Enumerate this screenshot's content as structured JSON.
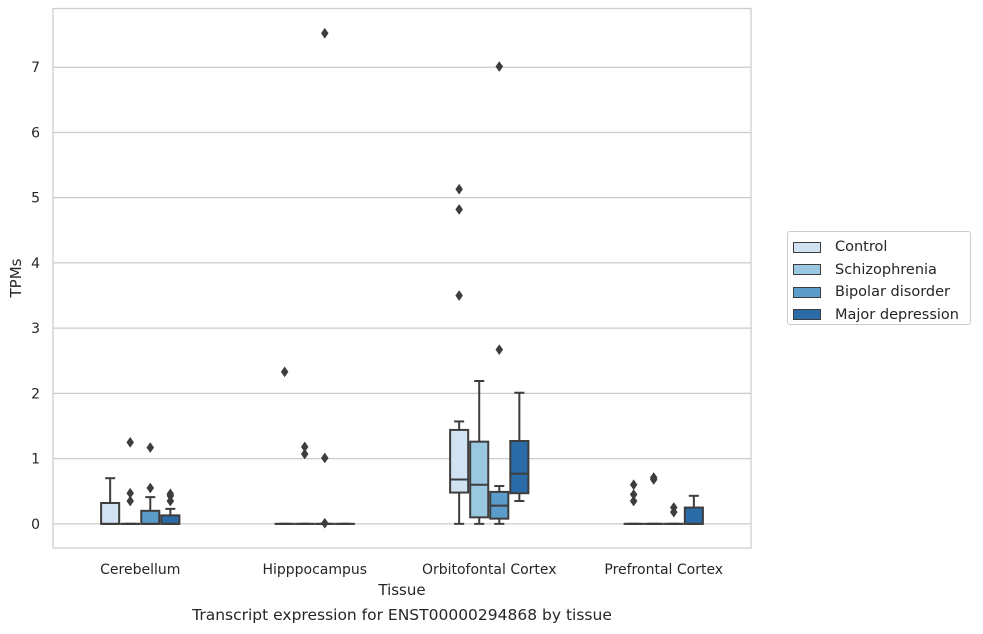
{
  "chart_data": {
    "type": "box",
    "title": "Transcript expression for ENST00000294868 by tissue",
    "xlabel": "Tissue",
    "ylabel": "TPMs",
    "categories": [
      "Cerebellum",
      "Hipppocampus",
      "Orbitofontal Cortex",
      "Prefrontal Cortex"
    ],
    "ylim": [
      -0.37,
      7.9
    ],
    "yticks": [
      0,
      1,
      2,
      3,
      4,
      5,
      6,
      7
    ],
    "grid": "horizontal",
    "legend_position": "right",
    "series": [
      {
        "name": "Control",
        "color": "#d1e2f2",
        "boxes": [
          {
            "min": 0,
            "q1": 0,
            "median": 0,
            "q3": 0.32,
            "max": 0.7,
            "outliers": []
          },
          {
            "min": 0,
            "q1": 0,
            "median": 0,
            "q3": 0,
            "max": 0,
            "outliers": [
              2.33
            ]
          },
          {
            "min": 0,
            "q1": 0.48,
            "median": 0.68,
            "q3": 1.44,
            "max": 1.57,
            "outliers": [
              3.5,
              4.82,
              5.13
            ]
          },
          {
            "min": 0,
            "q1": 0,
            "median": 0,
            "q3": 0,
            "max": 0,
            "outliers": [
              0.35,
              0.45,
              0.6
            ]
          }
        ]
      },
      {
        "name": "Schizophrenia",
        "color": "#9ac8e0",
        "boxes": [
          {
            "min": 0,
            "q1": 0,
            "median": 0,
            "q3": 0,
            "max": 0,
            "outliers": [
              0.35,
              0.47,
              1.25
            ]
          },
          {
            "min": 0,
            "q1": 0,
            "median": 0,
            "q3": 0,
            "max": 0,
            "outliers": [
              1.07,
              1.18
            ]
          },
          {
            "min": 0,
            "q1": 0.1,
            "median": 0.6,
            "q3": 1.26,
            "max": 2.19,
            "outliers": []
          },
          {
            "min": 0,
            "q1": 0,
            "median": 0,
            "q3": 0,
            "max": 0,
            "outliers": [
              0.68,
              0.71
            ]
          }
        ]
      },
      {
        "name": "Bipolar disorder",
        "color": "#5b9ccb",
        "boxes": [
          {
            "min": 0,
            "q1": 0,
            "median": 0,
            "q3": 0.2,
            "max": 0.41,
            "outliers": [
              0.55,
              1.17
            ]
          },
          {
            "min": 0,
            "q1": 0,
            "median": 0,
            "q3": 0,
            "max": 0,
            "outliers": [
              0.01,
              1.01,
              7.52
            ]
          },
          {
            "min": 0,
            "q1": 0.08,
            "median": 0.28,
            "q3": 0.49,
            "max": 0.58,
            "outliers": [
              2.67,
              7.01
            ]
          },
          {
            "min": 0,
            "q1": 0,
            "median": 0,
            "q3": 0,
            "max": 0,
            "outliers": [
              0.18,
              0.25
            ]
          }
        ]
      },
      {
        "name": "Major depression",
        "color": "#2b6ca8",
        "boxes": [
          {
            "min": 0,
            "q1": 0,
            "median": 0,
            "q3": 0.13,
            "max": 0.23,
            "outliers": [
              0.35,
              0.43,
              0.46
            ]
          },
          {
            "min": 0,
            "q1": 0,
            "median": 0,
            "q3": 0,
            "max": 0,
            "outliers": []
          },
          {
            "min": 0.35,
            "q1": 0.47,
            "median": 0.77,
            "q3": 1.27,
            "max": 2.01,
            "outliers": []
          },
          {
            "min": 0,
            "q1": 0,
            "median": 0,
            "q3": 0.25,
            "max": 0.43,
            "outliers": []
          }
        ]
      }
    ]
  }
}
